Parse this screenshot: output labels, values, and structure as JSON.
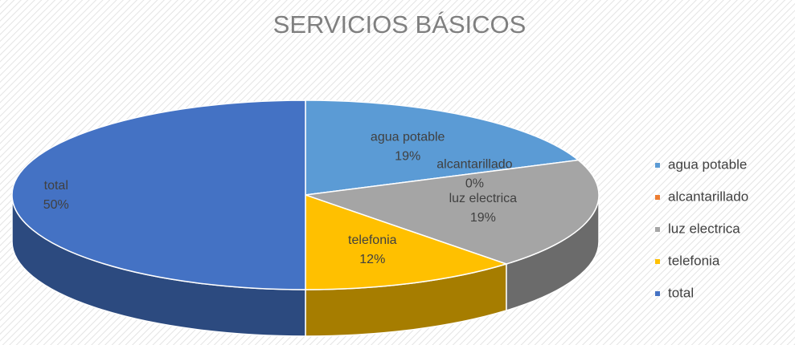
{
  "chart_data": {
    "type": "pie3d",
    "title": "SERVICIOS BÁSICOS",
    "categories": [
      "agua potable",
      "alcantarillado",
      "luz electrica",
      "telefonia",
      "total"
    ],
    "values": [
      19,
      0,
      19,
      12,
      50
    ],
    "value_labels": [
      "19%",
      "0%",
      "19%",
      "12%",
      "50%"
    ],
    "colors": [
      "#5b9bd5",
      "#ed7d31",
      "#a5a5a5",
      "#ffc000",
      "#4472c4"
    ],
    "legend": "right"
  }
}
